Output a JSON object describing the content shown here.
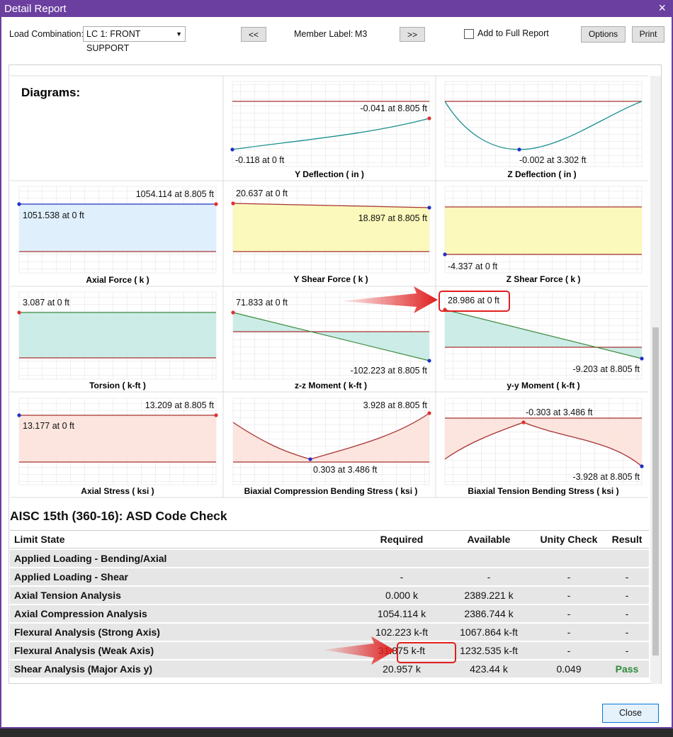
{
  "window": {
    "title": "Detail Report",
    "close_icon": "×"
  },
  "toolbar": {
    "load_combination_label": "Load Combination:",
    "load_combination": "LC 1: FRONT SUPPORT",
    "prev": "<<",
    "member_label_label": "Member Label:",
    "member_label": "M3",
    "next": ">>",
    "add_to_report": "Add to Full Report",
    "options": "Options",
    "print": "Print"
  },
  "diagrams": {
    "heading": "Diagrams:",
    "items": [
      {
        "title": "Y Deflection ( in )",
        "labels": [
          "-0.041 at 8.805 ft",
          "-0.118 at 0 ft"
        ]
      },
      {
        "title": "Z Deflection ( in )",
        "labels": [
          "-0.002 at 3.302 ft"
        ]
      },
      {
        "title": "Axial Force ( k )",
        "labels": [
          "1054.114 at 8.805 ft",
          "1051.538 at 0 ft"
        ]
      },
      {
        "title": "Y Shear Force ( k )",
        "labels": [
          "20.637 at 0 ft",
          "18.897 at 8.805 ft"
        ]
      },
      {
        "title": "Z Shear Force ( k )",
        "labels": [
          "-4.337 at 0 ft"
        ]
      },
      {
        "title": "Torsion ( k-ft )",
        "labels": [
          "3.087 at 0 ft"
        ]
      },
      {
        "title": "z-z Moment ( k-ft )",
        "labels": [
          "71.833 at 0 ft",
          "-102.223 at 8.805 ft"
        ]
      },
      {
        "title": "y-y Moment ( k-ft )",
        "labels": [
          "28.986 at 0 ft",
          "-9.203 at 8.805 ft"
        ]
      },
      {
        "title": "Axial Stress ( ksi )",
        "labels": [
          "13.209 at 8.805 ft",
          "13.177 at 0 ft"
        ]
      },
      {
        "title": "Biaxial Compression Bending Stress ( ksi )",
        "labels": [
          "3.928 at 8.805 ft",
          "0.303 at 3.486 ft"
        ]
      },
      {
        "title": "Biaxial Tension Bending Stress ( ksi )",
        "labels": [
          "-0.303 at 3.486 ft",
          "-3.928 at 8.805 ft"
        ]
      }
    ]
  },
  "code_check": {
    "title": "AISC 15th (360-16): ASD Code Check",
    "columns": {
      "limit_state": "Limit State",
      "required": "Required",
      "available": "Available",
      "unity": "Unity Check",
      "result": "Result"
    },
    "rows": [
      {
        "limit_state": "Applied Loading - Bending/Axial"
      },
      {
        "limit_state": "Applied Loading - Shear",
        "required": "-",
        "available": "-",
        "unity": "-",
        "result": "-"
      },
      {
        "limit_state": "Axial Tension Analysis",
        "required": "0.000 k",
        "available": "2389.221 k",
        "unity": "-",
        "result": "-"
      },
      {
        "limit_state": "Axial Compression Analysis",
        "required": "1054.114 k",
        "available": "2386.744 k",
        "unity": "-",
        "result": "-"
      },
      {
        "limit_state": "Flexural Analysis (Strong Axis)",
        "required": "102.223 k-ft",
        "available": "1067.864 k-ft",
        "unity": "-",
        "result": "-"
      },
      {
        "limit_state": "Flexural Analysis (Weak Axis)",
        "required": "31.875 k-ft",
        "available": "1232.535 k-ft",
        "unity": "-",
        "result": "-"
      },
      {
        "limit_state": "Shear Analysis (Major Axis y)",
        "required": "20.957 k",
        "available": "423.44 k",
        "unity": "0.049",
        "result": "Pass"
      }
    ]
  },
  "footer": {
    "close": "Close"
  }
}
